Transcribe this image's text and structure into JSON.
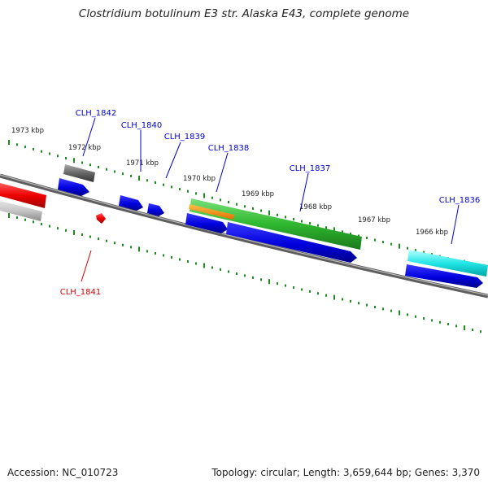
{
  "title": "Clostridium botulinum E3 str. Alaska E43, complete genome",
  "footer": {
    "accession": "Accession: NC_010723",
    "stats": "Topology: circular; Length: 3,659,644 bp; Genes: 3,370"
  },
  "colors": {
    "backbone": "#7a7a7a",
    "tick": "#1f8a1f",
    "label_forward": "#0000cc",
    "label_reverse": "#cc0000"
  },
  "kbp_labels": [
    "1973 kbp",
    "1972 kbp",
    "1971 kbp",
    "1970 kbp",
    "1969 kbp",
    "1968 kbp",
    "1967 kbp",
    "1966 kbp"
  ],
  "gene_labels": [
    "CLH_1842",
    "CLH_1840",
    "CLH_1839",
    "CLH_1838",
    "CLH_1837",
    "CLH_1836",
    "CLH_1841"
  ]
}
